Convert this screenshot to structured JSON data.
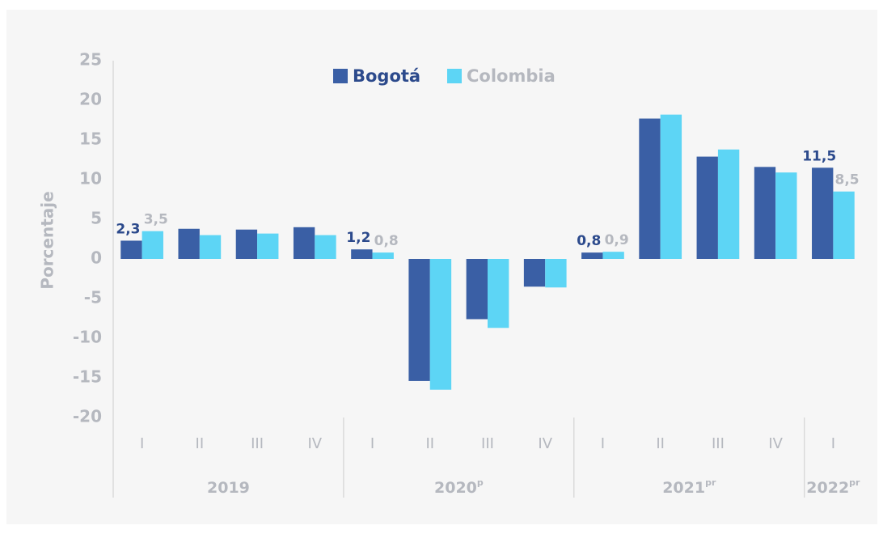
{
  "chart_data": {
    "type": "bar",
    "y_label": "Porcentaje",
    "groups": [
      {
        "label": "2019",
        "categories": [
          "I",
          "II",
          "III",
          "IV"
        ]
      },
      {
        "label": "2020",
        "sup": "p",
        "categories": [
          "I",
          "II",
          "III",
          "IV"
        ]
      },
      {
        "label": "2021",
        "sup": "pr",
        "categories": [
          "I",
          "II",
          "III",
          "IV"
        ]
      },
      {
        "label": "2022",
        "sup": "pr",
        "categories": [
          "I"
        ]
      }
    ],
    "series": [
      {
        "name": "Bogotá",
        "color": "#3a5fa5",
        "label_color": "#2c4a8c",
        "values": [
          2.3,
          3.8,
          3.7,
          4.0,
          1.2,
          -15.4,
          -7.6,
          -3.5,
          0.8,
          17.7,
          12.9,
          11.6,
          11.5
        ],
        "value_labels": [
          "2,3",
          null,
          null,
          null,
          "1,2",
          null,
          null,
          null,
          "0,8",
          null,
          null,
          null,
          "11,5"
        ]
      },
      {
        "name": "Colombia",
        "color": "#5dd5f5",
        "label_color": "#b5b8bf",
        "values": [
          3.5,
          3.0,
          3.2,
          3.0,
          0.8,
          -16.5,
          -8.7,
          -3.6,
          0.9,
          18.2,
          13.8,
          10.9,
          8.5
        ],
        "value_labels": [
          "3,5",
          null,
          null,
          null,
          "0,8",
          null,
          null,
          null,
          "0,9",
          null,
          null,
          null,
          "8,5"
        ]
      }
    ],
    "ylim": [
      -20,
      25
    ],
    "yticks": [
      -20,
      -15,
      -10,
      -5,
      0,
      5,
      10,
      15,
      20,
      25
    ],
    "grid": false
  }
}
